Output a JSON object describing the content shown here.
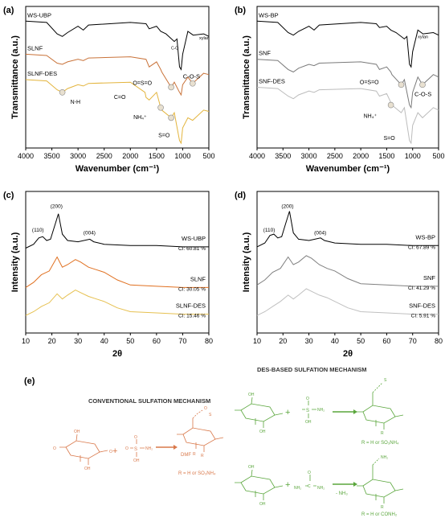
{
  "panels": {
    "a": {
      "letter": "(a)",
      "ylabel": "Transmittance (a.u.)",
      "xlabel": "Wavenumber (cm⁻¹)",
      "xticks": [
        "4000",
        "3500",
        "3000",
        "2500",
        "2000",
        "1500",
        "1000",
        "500"
      ],
      "series": [
        {
          "name": "WS-UBP",
          "color": "#000000"
        },
        {
          "name": "SLNF",
          "color": "#c9733a"
        },
        {
          "name": "SLNF-DES",
          "color": "#e3b43c"
        }
      ],
      "annotations": {
        "co": "C-O",
        "xylan": "xylan",
        "cos": "C-O-S",
        "oso": "O=S=O",
        "nh": "N-H",
        "ceo": "C=O",
        "nh4": "NH₄⁺",
        "so": "S=O"
      }
    },
    "b": {
      "letter": "(b)",
      "ylabel": "Transmittance (a.u.)",
      "xlabel": "Wavenumber (cm⁻¹)",
      "xticks": [
        "4000",
        "3500",
        "3000",
        "2500",
        "2000",
        "1500",
        "1000",
        "500"
      ],
      "series": [
        {
          "name": "WS-BP",
          "color": "#000000"
        },
        {
          "name": "SNF",
          "color": "#7a7a7a"
        },
        {
          "name": "SNF-DES",
          "color": "#bcbcbc"
        }
      ],
      "annotations": {
        "xylan": "xylan",
        "oso": "O=S=O",
        "cos": "C-O-S",
        "nh4": "NH₄⁺",
        "so": "S=O"
      }
    },
    "c": {
      "letter": "(c)",
      "ylabel": "Intensity (a.u.)",
      "xlabel": "2θ",
      "xticks": [
        "10",
        "20",
        "30",
        "40",
        "50",
        "60",
        "70",
        "80"
      ],
      "peaks": [
        "(110)",
        "(200)",
        "(004)"
      ],
      "series": [
        {
          "name": "WS-UBP",
          "ci": "CI: 60.81 %",
          "color": "#000000"
        },
        {
          "name": "SLNF",
          "ci": "CI: 30.05 %",
          "color": "#e07020"
        },
        {
          "name": "SLNF-DES",
          "ci": "CI: 15.46 %",
          "color": "#e6c050"
        }
      ]
    },
    "d": {
      "letter": "(d)",
      "ylabel": "Intensity (a.u.)",
      "xlabel": "2θ",
      "xticks": [
        "10",
        "20",
        "30",
        "40",
        "50",
        "60",
        "70",
        "80"
      ],
      "peaks": [
        "(110)",
        "(200)",
        "(004)"
      ],
      "series": [
        {
          "name": "WS-BP",
          "ci": "CI: 67.89 %",
          "color": "#000000"
        },
        {
          "name": "SNF",
          "ci": "CI: 41.29 %",
          "color": "#808080"
        },
        {
          "name": "SNF-DES",
          "ci": "CI: 5.91 %",
          "color": "#c0c0c0"
        }
      ]
    },
    "e": {
      "letter": "(e)",
      "conventional_title": "CONVENTIONAL SULFATION MECHANISM",
      "des_title": "DES-BASED SULFATION MECHANISM",
      "conv_reagent": "DMF",
      "conv_r": "R = H or SO₃NH₄",
      "des_r1": "R = H or SO₃NH₄",
      "des_r2": "R = H or CONH₂",
      "des_byproduct": "- NH₃",
      "plus": "+",
      "nh2": "NH₂",
      "oh": "OH",
      "o": "O",
      "s": "S",
      "c": "C",
      "r": "R",
      "conv_color": "#d9784a",
      "des_color": "#5aa63c"
    }
  },
  "chart_data": [
    {
      "type": "line",
      "panel": "a",
      "xlabel": "Wavenumber (cm⁻¹)",
      "ylabel": "Transmittance (a.u.)",
      "xlim": [
        4000,
        500
      ],
      "series": [
        {
          "name": "WS-UBP",
          "x": [
            4000,
            3600,
            3400,
            3300,
            3200,
            3000,
            2900,
            2800,
            2000,
            1700,
            1640,
            1500,
            1420,
            1320,
            1160,
            1110,
            1060,
            1030,
            1000,
            900,
            800,
            600,
            500
          ],
          "y": [
            0.96,
            0.95,
            0.86,
            0.84,
            0.87,
            0.92,
            0.89,
            0.93,
            0.95,
            0.94,
            0.9,
            0.92,
            0.88,
            0.86,
            0.8,
            0.82,
            0.6,
            0.58,
            0.7,
            0.88,
            0.85,
            0.86,
            0.84
          ]
        },
        {
          "name": "SLNF",
          "x": [
            4000,
            3600,
            3400,
            3300,
            3200,
            3000,
            2900,
            2800,
            2000,
            1700,
            1640,
            1500,
            1420,
            1400,
            1220,
            1160,
            1060,
            1030,
            1000,
            900,
            810,
            600,
            500
          ],
          "y": [
            0.7,
            0.69,
            0.63,
            0.62,
            0.64,
            0.66,
            0.65,
            0.67,
            0.68,
            0.66,
            0.6,
            0.64,
            0.58,
            0.56,
            0.44,
            0.48,
            0.4,
            0.38,
            0.46,
            0.52,
            0.47,
            0.55,
            0.54
          ]
        },
        {
          "name": "SLNF-DES",
          "x": [
            4000,
            3600,
            3400,
            3300,
            3200,
            3000,
            2900,
            2800,
            2000,
            1720,
            1700,
            1640,
            1500,
            1420,
            1400,
            1220,
            1160,
            1060,
            1030,
            1000,
            900,
            810,
            600,
            500
          ],
          "y": [
            0.5,
            0.49,
            0.42,
            0.4,
            0.43,
            0.46,
            0.45,
            0.47,
            0.48,
            0.4,
            0.36,
            0.34,
            0.4,
            0.28,
            0.26,
            0.2,
            0.24,
            0.02,
            0.0,
            0.12,
            0.2,
            0.18,
            0.26,
            0.25
          ]
        }
      ]
    },
    {
      "type": "line",
      "panel": "b",
      "xlabel": "Wavenumber (cm⁻¹)",
      "ylabel": "Transmittance (a.u.)",
      "xlim": [
        4000,
        500
      ],
      "series": [
        {
          "name": "WS-BP",
          "x": [
            4000,
            3600,
            3400,
            3300,
            3200,
            3000,
            2900,
            2800,
            2000,
            1700,
            1640,
            1500,
            1420,
            1320,
            1160,
            1110,
            1060,
            1030,
            1000,
            900,
            800,
            600,
            500
          ],
          "y": [
            0.96,
            0.95,
            0.87,
            0.85,
            0.88,
            0.92,
            0.89,
            0.93,
            0.95,
            0.94,
            0.91,
            0.92,
            0.89,
            0.87,
            0.82,
            0.84,
            0.62,
            0.6,
            0.72,
            0.89,
            0.86,
            0.87,
            0.85
          ]
        },
        {
          "name": "SNF",
          "x": [
            4000,
            3600,
            3400,
            3300,
            3200,
            3000,
            2900,
            2800,
            2000,
            1700,
            1640,
            1500,
            1420,
            1400,
            1220,
            1160,
            1060,
            1030,
            1000,
            900,
            810,
            600,
            500
          ],
          "y": [
            0.66,
            0.65,
            0.58,
            0.56,
            0.59,
            0.62,
            0.61,
            0.63,
            0.64,
            0.62,
            0.58,
            0.6,
            0.56,
            0.54,
            0.46,
            0.5,
            0.3,
            0.28,
            0.4,
            0.52,
            0.46,
            0.54,
            0.52
          ]
        },
        {
          "name": "SNF-DES",
          "x": [
            4000,
            3600,
            3400,
            3300,
            3200,
            3000,
            2900,
            2800,
            2000,
            1700,
            1640,
            1500,
            1420,
            1400,
            1220,
            1160,
            1060,
            1030,
            1000,
            900,
            810,
            600,
            500
          ],
          "y": [
            0.44,
            0.43,
            0.37,
            0.35,
            0.38,
            0.41,
            0.4,
            0.42,
            0.43,
            0.41,
            0.37,
            0.39,
            0.32,
            0.3,
            0.24,
            0.28,
            0.02,
            0.0,
            0.14,
            0.24,
            0.2,
            0.28,
            0.26
          ]
        }
      ]
    },
    {
      "type": "line",
      "panel": "c",
      "xlabel": "2θ",
      "ylabel": "Intensity (a.u.)",
      "xlim": [
        10,
        80
      ],
      "series": [
        {
          "name": "WS-UBP",
          "x": [
            10,
            13,
            15,
            16.5,
            18,
            19.5,
            21,
            22.5,
            24,
            26,
            30,
            34.5,
            36,
            40,
            50,
            60,
            70,
            80
          ],
          "y": [
            0.63,
            0.66,
            0.71,
            0.72,
            0.69,
            0.7,
            0.8,
            0.9,
            0.74,
            0.69,
            0.68,
            0.7,
            0.68,
            0.66,
            0.65,
            0.65,
            0.64,
            0.64
          ]
        },
        {
          "name": "SLNF",
          "x": [
            10,
            13,
            16,
            19,
            22,
            24,
            26,
            29,
            31,
            34,
            37,
            40,
            45,
            50,
            60,
            70,
            80
          ],
          "y": [
            0.32,
            0.36,
            0.42,
            0.45,
            0.56,
            0.48,
            0.5,
            0.54,
            0.52,
            0.48,
            0.46,
            0.44,
            0.38,
            0.34,
            0.33,
            0.32,
            0.32
          ]
        },
        {
          "name": "SLNF-DES",
          "x": [
            10,
            13,
            16,
            19,
            22,
            24,
            26,
            29,
            31,
            34,
            37,
            40,
            45,
            50,
            60,
            70,
            80
          ],
          "y": [
            0.1,
            0.13,
            0.17,
            0.2,
            0.27,
            0.23,
            0.26,
            0.3,
            0.28,
            0.25,
            0.23,
            0.21,
            0.16,
            0.13,
            0.12,
            0.11,
            0.11
          ]
        }
      ]
    },
    {
      "type": "line",
      "panel": "d",
      "xlabel": "2θ",
      "ylabel": "Intensity (a.u.)",
      "xlim": [
        10,
        80
      ],
      "series": [
        {
          "name": "WS-BP",
          "x": [
            10,
            13,
            15,
            16.5,
            18,
            19.5,
            21,
            22.5,
            24,
            26,
            30,
            34.5,
            36,
            40,
            50,
            60,
            70,
            80
          ],
          "y": [
            0.64,
            0.67,
            0.73,
            0.74,
            0.71,
            0.72,
            0.82,
            0.92,
            0.75,
            0.7,
            0.69,
            0.71,
            0.69,
            0.67,
            0.66,
            0.66,
            0.65,
            0.65
          ]
        },
        {
          "name": "SNF",
          "x": [
            10,
            13,
            16,
            19,
            22,
            24,
            26,
            29,
            31,
            34,
            37,
            40,
            45,
            50,
            60,
            70,
            80
          ],
          "y": [
            0.34,
            0.38,
            0.44,
            0.47,
            0.56,
            0.5,
            0.52,
            0.57,
            0.55,
            0.5,
            0.47,
            0.45,
            0.39,
            0.35,
            0.34,
            0.33,
            0.33
          ]
        },
        {
          "name": "SNF-DES",
          "x": [
            10,
            13,
            16,
            19,
            22,
            24,
            26,
            29,
            31,
            34,
            37,
            40,
            45,
            50,
            60,
            70,
            80
          ],
          "y": [
            0.1,
            0.13,
            0.17,
            0.21,
            0.26,
            0.23,
            0.26,
            0.31,
            0.29,
            0.26,
            0.24,
            0.21,
            0.16,
            0.13,
            0.12,
            0.11,
            0.11
          ]
        }
      ]
    }
  ]
}
